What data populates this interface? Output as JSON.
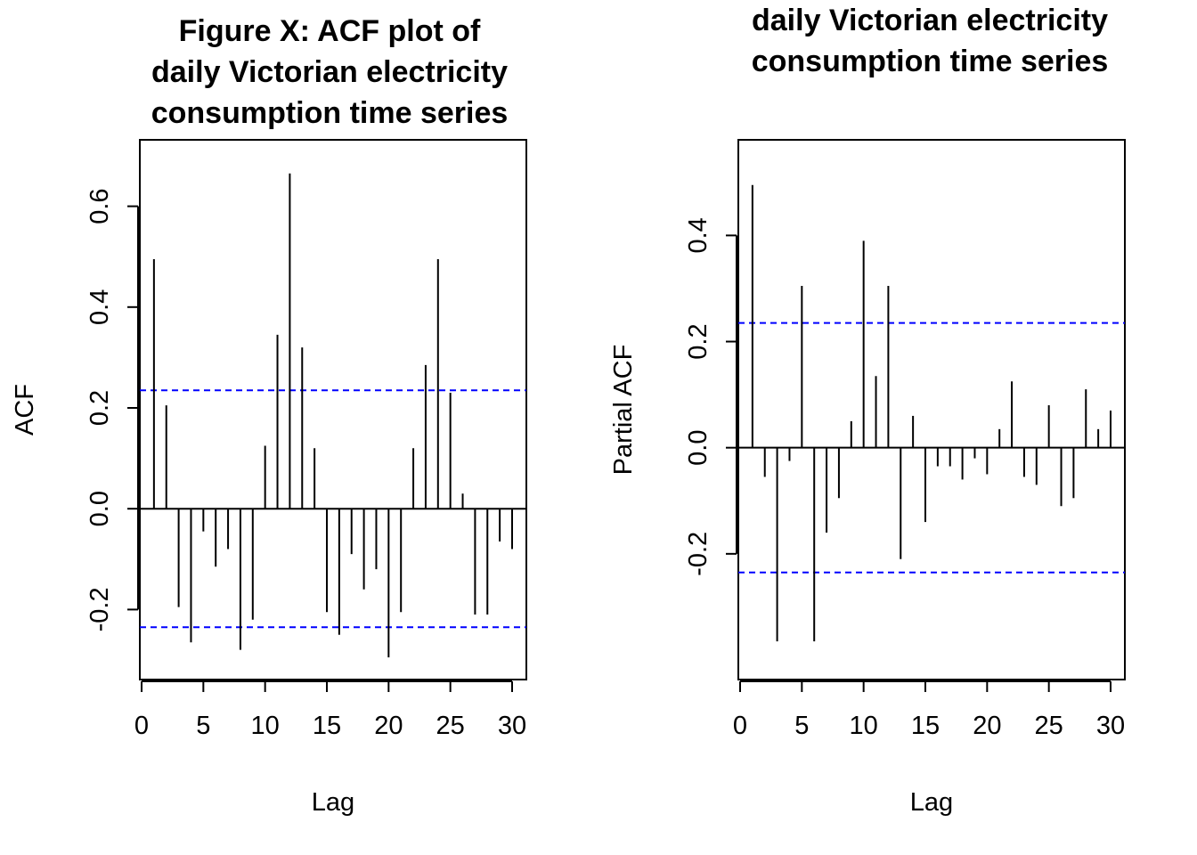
{
  "chart_data": [
    {
      "type": "bar",
      "title_lines": [
        "Figure X: ACF plot of",
        "daily Victorian electricity",
        "consumption time series"
      ],
      "xlabel": "Lag",
      "ylabel": "ACF",
      "xlim": [
        0,
        30
      ],
      "ylim": [
        -0.3,
        0.7
      ],
      "x_ticks": [
        0,
        5,
        10,
        15,
        20,
        25,
        30
      ],
      "x_tick_labels": [
        "0",
        "5",
        "10",
        "15",
        "20",
        "25",
        "30"
      ],
      "y_ticks": [
        -0.2,
        0.0,
        0.2,
        0.4,
        0.6
      ],
      "y_tick_labels": [
        "-0.2",
        "0.0",
        "0.2",
        "0.4",
        "0.6"
      ],
      "lags": [
        1,
        2,
        3,
        4,
        5,
        6,
        7,
        8,
        9,
        10,
        11,
        12,
        13,
        14,
        15,
        16,
        17,
        18,
        19,
        20,
        21,
        22,
        23,
        24,
        25,
        26,
        27,
        28,
        29,
        30
      ],
      "values": [
        0.495,
        0.205,
        -0.195,
        -0.265,
        -0.045,
        -0.115,
        -0.08,
        -0.28,
        -0.22,
        0.125,
        0.345,
        0.665,
        0.32,
        0.12,
        -0.205,
        -0.25,
        -0.09,
        -0.16,
        -0.12,
        -0.295,
        -0.205,
        0.12,
        0.285,
        0.495,
        0.23,
        0.03,
        -0.21,
        -0.21,
        -0.065,
        -0.08
      ],
      "confidence_bound": 0.235,
      "bound_color": "#0000ff",
      "bar_color": "#000000"
    },
    {
      "type": "bar",
      "title_lines": [
        "daily Victorian electricity",
        "consumption time series"
      ],
      "xlabel": "Lag",
      "ylabel": "Partial ACF",
      "xlim": [
        0,
        30
      ],
      "ylim": [
        -0.4,
        0.55
      ],
      "x_ticks": [
        0,
        5,
        10,
        15,
        20,
        25,
        30
      ],
      "x_tick_labels": [
        "0",
        "5",
        "10",
        "15",
        "20",
        "25",
        "30"
      ],
      "y_ticks": [
        -0.2,
        0.0,
        0.2,
        0.4
      ],
      "y_tick_labels": [
        "-0.2",
        "0.0",
        "0.2",
        "0.4"
      ],
      "lags": [
        1,
        2,
        3,
        4,
        5,
        6,
        7,
        8,
        9,
        10,
        11,
        12,
        13,
        14,
        15,
        16,
        17,
        18,
        19,
        20,
        21,
        22,
        23,
        24,
        25,
        26,
        27,
        28,
        29,
        30
      ],
      "values": [
        0.495,
        -0.055,
        -0.365,
        -0.025,
        0.305,
        -0.365,
        -0.16,
        -0.095,
        0.05,
        0.39,
        0.135,
        0.305,
        -0.21,
        0.06,
        -0.14,
        -0.035,
        -0.035,
        -0.06,
        -0.02,
        -0.05,
        0.035,
        0.125,
        -0.055,
        -0.07,
        0.08,
        -0.11,
        -0.095,
        0.11,
        0.035,
        0.07
      ],
      "confidence_bound": 0.235,
      "bound_color": "#0000ff",
      "bar_color": "#000000"
    }
  ]
}
